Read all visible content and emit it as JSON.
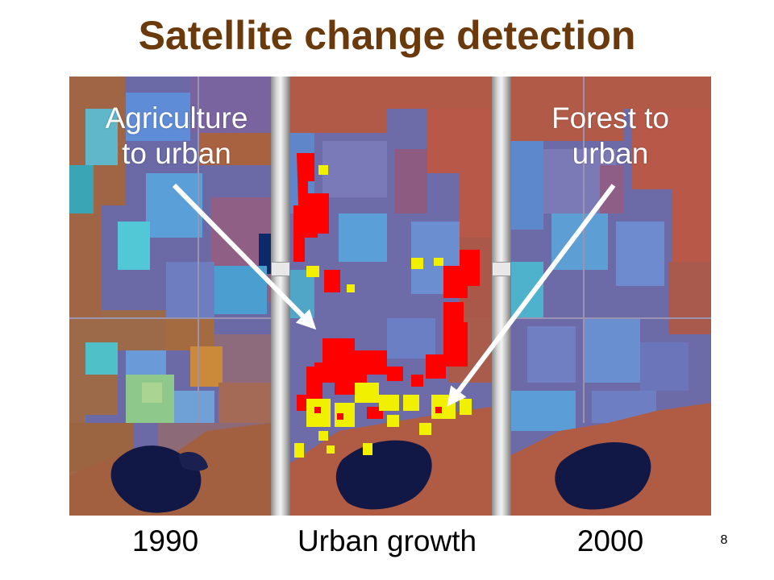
{
  "slide": {
    "title": "Satellite change detection",
    "page_number": "8"
  },
  "panels": [
    {
      "id": "panel-1990",
      "caption": "1990"
    },
    {
      "id": "panel-urban-growth",
      "caption": "Urban growth"
    },
    {
      "id": "panel-2000",
      "caption": "2000"
    }
  ],
  "annotations": {
    "agriculture_label_line1": "Agriculture",
    "agriculture_label_line2": "to urban",
    "forest_label_line1": "Forest to",
    "forest_label_line2": "urban"
  },
  "colors": {
    "title": "#6b3a0c",
    "urban_blue": "#6a6aa8",
    "vegetation_red": "#b5574a",
    "agriculture_orange": "#a8683f",
    "water_dark": "#121846",
    "change_red": "#ff0000",
    "change_yellow": "#f0f000",
    "arrow": "#ffffff"
  }
}
